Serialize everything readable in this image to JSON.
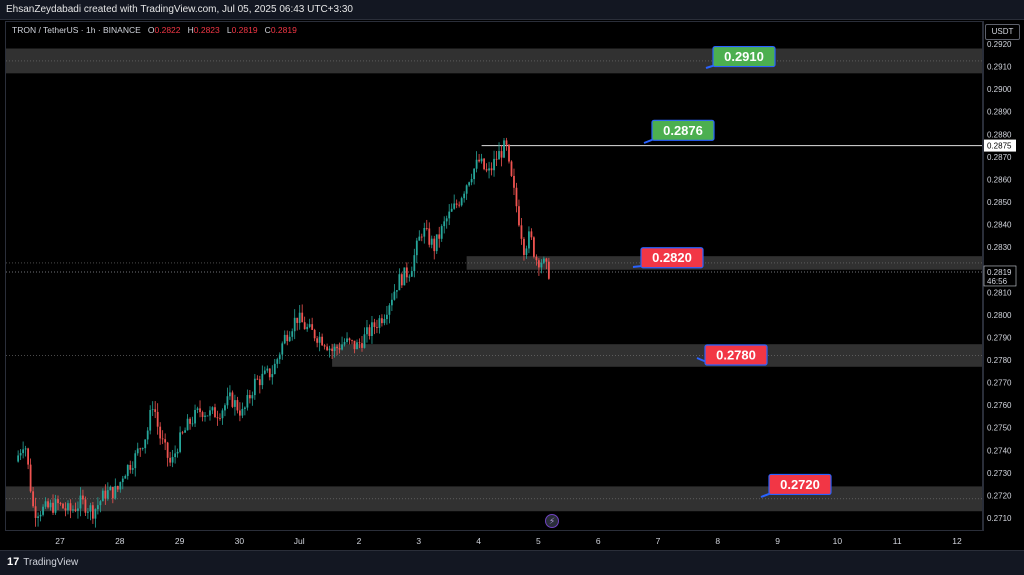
{
  "header": {
    "credit": "EhsanZeydabadi created with TradingView.com, Jul 05, 2025 06:43 UTC+3:30"
  },
  "symbol_info": {
    "name": "TRON / TetherUS · 1h · BINANCE",
    "o_label": "O",
    "o_value": "0.2822",
    "h_label": "H",
    "h_value": "0.2823",
    "l_label": "L",
    "l_value": "0.2819",
    "c_label": "C",
    "c_value": "0.2819"
  },
  "axis": {
    "currency": "USDT"
  },
  "footer": {
    "brand": "TradingView"
  },
  "colors": {
    "up": "#26a69a",
    "down": "#ef5350",
    "tag_green": "#4caf50",
    "tag_red": "#f23645",
    "zone": "#3a3a3a",
    "background": "#000000"
  },
  "chart_data": {
    "type": "candlestick",
    "symbol": "TRON / TetherUS",
    "interval": "1h",
    "exchange": "BINANCE",
    "ylim": [
      0.2706,
      0.2924
    ],
    "y_ticks": [
      "0.2920",
      "0.2910",
      "0.2900",
      "0.2890",
      "0.2880",
      "0.2870",
      "0.2860",
      "0.2850",
      "0.2840",
      "0.2830",
      "0.2820",
      "0.2810",
      "0.2800",
      "0.2790",
      "0.2780",
      "0.2770",
      "0.2760",
      "0.2750",
      "0.2740",
      "0.2730",
      "0.2720",
      "0.2710"
    ],
    "x_ticks": [
      "27",
      "28",
      "29",
      "30",
      "Jul",
      "2",
      "3",
      "4",
      "5",
      "6",
      "7",
      "8",
      "9",
      "10",
      "11",
      "12"
    ],
    "x_tick_days": [
      27,
      28,
      29,
      30,
      31,
      32,
      33,
      34,
      35,
      36,
      37,
      38,
      39,
      40,
      41,
      42
    ],
    "day_range": [
      26.25,
      42.5
    ],
    "price_path": [
      [
        26.3,
        0.2735
      ],
      [
        26.45,
        0.2745
      ],
      [
        26.6,
        0.2713
      ],
      [
        26.8,
        0.2714
      ],
      [
        27.0,
        0.2716
      ],
      [
        27.2,
        0.2713
      ],
      [
        27.4,
        0.2717
      ],
      [
        27.6,
        0.2713
      ],
      [
        27.8,
        0.2721
      ],
      [
        28.0,
        0.2722
      ],
      [
        28.1,
        0.273
      ],
      [
        28.3,
        0.2737
      ],
      [
        28.5,
        0.2748
      ],
      [
        28.6,
        0.2762
      ],
      [
        28.7,
        0.2747
      ],
      [
        28.9,
        0.2733
      ],
      [
        29.0,
        0.2742
      ],
      [
        29.2,
        0.2752
      ],
      [
        29.4,
        0.2758
      ],
      [
        29.55,
        0.2756
      ],
      [
        29.7,
        0.2757
      ],
      [
        29.9,
        0.2763
      ],
      [
        30.1,
        0.2756
      ],
      [
        30.3,
        0.277
      ],
      [
        30.6,
        0.2775
      ],
      [
        30.8,
        0.279
      ],
      [
        31.0,
        0.2799
      ],
      [
        31.2,
        0.2793
      ],
      [
        31.45,
        0.2789
      ],
      [
        31.6,
        0.2784
      ],
      [
        31.8,
        0.2788
      ],
      [
        32.0,
        0.2786
      ],
      [
        32.2,
        0.2792
      ],
      [
        32.45,
        0.28
      ],
      [
        32.7,
        0.2815
      ],
      [
        32.9,
        0.282
      ],
      [
        33.1,
        0.2838
      ],
      [
        33.3,
        0.283
      ],
      [
        33.5,
        0.2842
      ],
      [
        33.7,
        0.285
      ],
      [
        33.9,
        0.2862
      ],
      [
        34.05,
        0.2868
      ],
      [
        34.2,
        0.2862
      ],
      [
        34.35,
        0.287
      ],
      [
        34.5,
        0.2875
      ],
      [
        34.55,
        0.2865
      ],
      [
        34.7,
        0.2845
      ],
      [
        34.8,
        0.283
      ],
      [
        34.9,
        0.2835
      ],
      [
        35.0,
        0.2825
      ],
      [
        35.1,
        0.2824
      ],
      [
        35.2,
        0.2819
      ]
    ],
    "last_price": "0.2819",
    "countdown": "46:56",
    "marked_price": "0.2875",
    "zones": [
      {
        "low": 0.2907,
        "high": 0.2918
      },
      {
        "low": 0.282,
        "high": 0.2826
      },
      {
        "low": 0.2777,
        "high": 0.2787
      },
      {
        "low": 0.2713,
        "high": 0.2724
      }
    ],
    "annotations": [
      {
        "text": "0.2910",
        "color": "green",
        "value": 0.291
      },
      {
        "text": "0.2876",
        "color": "green",
        "value": 0.2876
      },
      {
        "text": "0.2820",
        "color": "red",
        "value": 0.282
      },
      {
        "text": "0.2780",
        "color": "red",
        "value": 0.278
      },
      {
        "text": "0.2720",
        "color": "red",
        "value": 0.272
      }
    ]
  }
}
